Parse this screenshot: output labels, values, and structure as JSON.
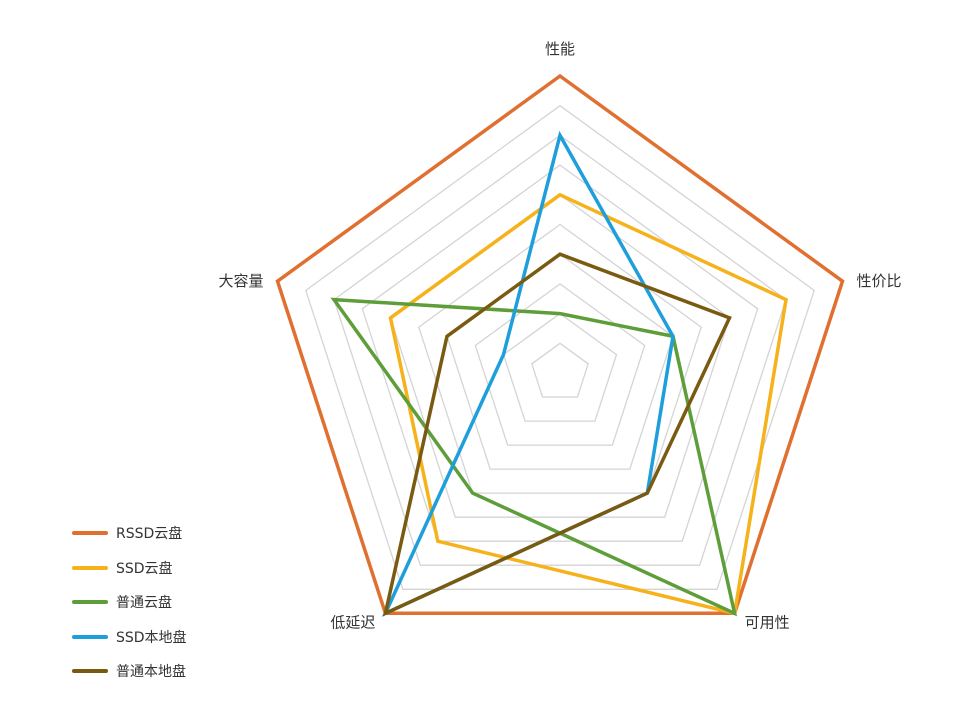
{
  "chart_data": {
    "type": "radar",
    "title": "",
    "axes": [
      "性能",
      "性价比",
      "可用性",
      "低延迟",
      "大容量"
    ],
    "range": [
      0,
      10
    ],
    "ring_count": 10,
    "grid": true,
    "legend_position": "bottom-left",
    "series": [
      {
        "name": "RSSD云盘",
        "color": "#E07030",
        "values": [
          10,
          10,
          10,
          10,
          10
        ]
      },
      {
        "name": "SSD云盘",
        "color": "#F5B21A",
        "values": [
          6,
          8,
          10,
          7,
          6
        ]
      },
      {
        "name": "普通云盘",
        "color": "#5E9E3A",
        "values": [
          2,
          4,
          10,
          5,
          8
        ]
      },
      {
        "name": "SSD本地盘",
        "color": "#1E9FDB",
        "values": [
          8,
          4,
          5,
          10,
          2
        ]
      },
      {
        "name": "普通本地盘",
        "color": "#7A5A10",
        "values": [
          4,
          6,
          5,
          10,
          4
        ]
      }
    ]
  }
}
